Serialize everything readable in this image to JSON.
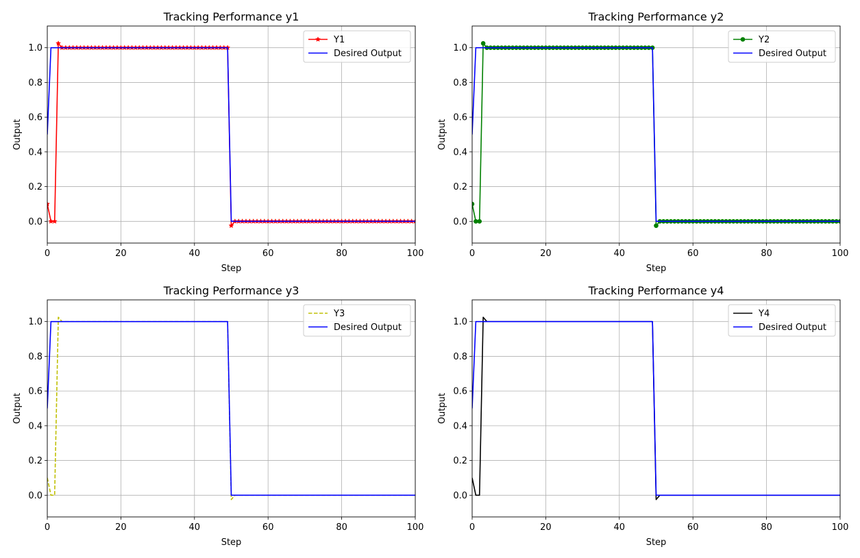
{
  "figure": {
    "background": "#ffffff"
  },
  "chart_data": [
    {
      "type": "line",
      "title": "Tracking Performance y1",
      "xlabel": "Step",
      "ylabel": "Output",
      "xlim": [
        0,
        100
      ],
      "ylim": [
        -0.125,
        1.125
      ],
      "xticks": [
        "0",
        "20",
        "40",
        "60",
        "80",
        "100"
      ],
      "yticks": [
        "0.0",
        "0.2",
        "0.4",
        "0.6",
        "0.8",
        "1.0"
      ],
      "grid": true,
      "legend_position": "top-right",
      "series": [
        {
          "name": "Y1",
          "color": "#ff0000",
          "style": "solid",
          "marker": "star",
          "shape": "tracked"
        },
        {
          "name": "Desired Output",
          "color": "#0000ff",
          "style": "solid",
          "marker": "none",
          "shape": "desired"
        }
      ]
    },
    {
      "type": "line",
      "title": "Tracking Performance y2",
      "xlabel": "Step",
      "ylabel": "Output",
      "xlim": [
        0,
        100
      ],
      "ylim": [
        -0.125,
        1.125
      ],
      "xticks": [
        "0",
        "20",
        "40",
        "60",
        "80",
        "100"
      ],
      "yticks": [
        "0.0",
        "0.2",
        "0.4",
        "0.6",
        "0.8",
        "1.0"
      ],
      "grid": true,
      "legend_position": "top-right",
      "series": [
        {
          "name": "Y2",
          "color": "#008000",
          "style": "solid",
          "marker": "circle",
          "shape": "tracked"
        },
        {
          "name": "Desired Output",
          "color": "#0000ff",
          "style": "solid",
          "marker": "none",
          "shape": "desired"
        }
      ]
    },
    {
      "type": "line",
      "title": "Tracking Performance y3",
      "xlabel": "Step",
      "ylabel": "Output",
      "xlim": [
        0,
        100
      ],
      "ylim": [
        -0.125,
        1.125
      ],
      "xticks": [
        "0",
        "20",
        "40",
        "60",
        "80",
        "100"
      ],
      "yticks": [
        "0.0",
        "0.2",
        "0.4",
        "0.6",
        "0.8",
        "1.0"
      ],
      "grid": true,
      "legend_position": "top-right",
      "series": [
        {
          "name": "Y3",
          "color": "#bfbf00",
          "style": "dashed",
          "marker": "none",
          "shape": "tracked"
        },
        {
          "name": "Desired Output",
          "color": "#0000ff",
          "style": "solid",
          "marker": "none",
          "shape": "desired"
        }
      ]
    },
    {
      "type": "line",
      "title": "Tracking Performance y4",
      "xlabel": "Step",
      "ylabel": "Output",
      "xlim": [
        0,
        100
      ],
      "ylim": [
        -0.125,
        1.125
      ],
      "xticks": [
        "0",
        "20",
        "40",
        "60",
        "80",
        "100"
      ],
      "yticks": [
        "0.0",
        "0.2",
        "0.4",
        "0.6",
        "0.8",
        "1.0"
      ],
      "grid": true,
      "legend_position": "top-right",
      "series": [
        {
          "name": "Y4",
          "color": "#000000",
          "style": "solid",
          "marker": "none",
          "shape": "tracked"
        },
        {
          "name": "Desired Output",
          "color": "#0000ff",
          "style": "solid",
          "marker": "none",
          "shape": "desired"
        }
      ]
    }
  ],
  "shapes": {
    "desired": {
      "keypoints": [
        [
          0,
          0.5
        ],
        [
          1,
          1.0
        ],
        [
          49,
          1.0
        ],
        [
          50,
          0.0
        ],
        [
          100,
          0.0
        ]
      ],
      "sample_step": 1
    },
    "tracked": {
      "keypoints": [
        [
          0,
          0.1
        ],
        [
          1,
          0.0
        ],
        [
          2,
          0.0
        ],
        [
          3,
          1.025
        ],
        [
          4,
          1.0
        ],
        [
          49,
          1.0
        ],
        [
          50,
          -0.025
        ],
        [
          51,
          0.0
        ],
        [
          100,
          0.0
        ]
      ],
      "sample_step": 1
    }
  }
}
